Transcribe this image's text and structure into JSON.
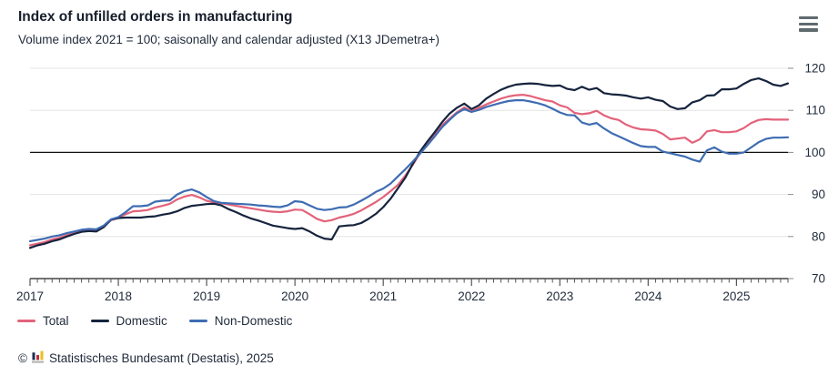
{
  "header": {
    "title": "Index of unfilled orders in manufacturing",
    "subtitle": "Volume index 2021 = 100; saisonally and calendar adjusted (X13 JDemetra+)"
  },
  "menu": {
    "icon": "hamburger-menu-icon"
  },
  "theme": {
    "title": "#161e2c",
    "text": "#1f2a3a",
    "axis": "#222222",
    "grid": "#e4e4e4",
    "tick": "#555555",
    "menu": "#5f6a6e",
    "logo_navy": "#1d2d50",
    "logo_red": "#c32b3a",
    "logo_gold": "#ecbe24",
    "logo_base": "#b0b0b0"
  },
  "chart_data": {
    "type": "line",
    "title": "Index of unfilled orders in manufacturing",
    "subtitle": "Volume index 2021 = 100; saisonally and calendar adjusted (X13 JDemetra+)",
    "x_frequency": "monthly",
    "x_start": "2017-01",
    "x_end": "2025-08",
    "x_tick_labels": [
      "2017",
      "2018",
      "2019",
      "2020",
      "2021",
      "2022",
      "2023",
      "2024",
      "2025"
    ],
    "y_ticks": [
      70,
      80,
      90,
      100,
      110,
      120
    ],
    "ylim": [
      70,
      120
    ],
    "reference_line": 100,
    "grid": "horizontal-light",
    "legend_position": "bottom-left",
    "series": [
      {
        "name": "Total",
        "color": "#e3627a",
        "values": [
          77.9,
          78.3,
          78.7,
          79.3,
          79.7,
          80.3,
          80.9,
          81.3,
          81.5,
          81.4,
          82.4,
          83.9,
          84.4,
          85.3,
          86.0,
          86.1,
          86.3,
          86.9,
          87.3,
          87.8,
          88.8,
          89.5,
          89.9,
          89.3,
          88.5,
          88.1,
          87.9,
          87.6,
          87.3,
          87.0,
          86.7,
          86.4,
          86.1,
          85.9,
          85.8,
          86.0,
          86.4,
          86.3,
          85.3,
          84.2,
          83.6,
          83.9,
          84.5,
          84.9,
          85.4,
          86.2,
          87.2,
          88.2,
          89.4,
          90.8,
          92.3,
          94.5,
          97.0,
          99.8,
          102.0,
          104.2,
          106.5,
          108.0,
          109.5,
          110.7,
          109.8,
          110.6,
          111.4,
          112.1,
          112.8,
          113.3,
          113.6,
          113.7,
          113.4,
          112.9,
          112.4,
          112.1,
          111.2,
          110.7,
          109.4,
          109.1,
          109.3,
          109.9,
          108.8,
          108.1,
          107.7,
          106.6,
          105.9,
          105.5,
          105.4,
          105.2,
          104.4,
          103.1,
          103.3,
          103.5,
          102.3,
          103.1,
          105.0,
          105.3,
          104.8,
          104.8,
          105.0,
          105.8,
          107.0,
          107.7,
          107.9,
          107.8,
          107.8,
          107.8
        ]
      },
      {
        "name": "Domestic",
        "color": "#16243e",
        "values": [
          77.3,
          77.9,
          78.3,
          78.9,
          79.3,
          80.0,
          80.6,
          81.1,
          81.3,
          81.2,
          82.2,
          84.0,
          84.4,
          84.5,
          84.5,
          84.5,
          84.7,
          84.8,
          85.2,
          85.5,
          86.0,
          86.8,
          87.3,
          87.5,
          87.7,
          87.8,
          87.4,
          86.5,
          85.8,
          85.0,
          84.3,
          83.8,
          83.2,
          82.6,
          82.3,
          82.0,
          81.8,
          82.0,
          81.2,
          80.2,
          79.5,
          79.3,
          82.4,
          82.6,
          82.7,
          83.2,
          84.2,
          85.4,
          87.0,
          89.0,
          91.5,
          94.0,
          97.2,
          100.2,
          102.6,
          104.8,
          107.2,
          109.2,
          110.6,
          111.6,
          110.3,
          111.2,
          112.8,
          113.9,
          114.9,
          115.6,
          116.1,
          116.3,
          116.4,
          116.3,
          116.0,
          115.8,
          115.9,
          115.1,
          114.8,
          115.6,
          114.9,
          115.3,
          114.1,
          113.8,
          113.7,
          113.5,
          113.1,
          112.8,
          113.1,
          112.5,
          112.2,
          110.9,
          110.3,
          110.5,
          111.9,
          112.4,
          113.5,
          113.6,
          115.0,
          115.0,
          115.2,
          116.3,
          117.2,
          117.6,
          117.0,
          116.1,
          115.8,
          116.4
        ]
      },
      {
        "name": "Non-Domestic",
        "color": "#3e6cb2",
        "values": [
          78.9,
          79.2,
          79.5,
          80.0,
          80.3,
          80.8,
          81.2,
          81.6,
          81.8,
          81.7,
          82.6,
          84.1,
          84.6,
          85.8,
          87.2,
          87.2,
          87.4,
          88.3,
          88.5,
          88.6,
          90.0,
          90.8,
          91.2,
          90.5,
          89.4,
          88.4,
          88.0,
          87.9,
          87.8,
          87.7,
          87.6,
          87.4,
          87.3,
          87.1,
          87.0,
          87.4,
          88.4,
          88.2,
          87.4,
          86.6,
          86.3,
          86.5,
          86.9,
          87.0,
          87.6,
          88.5,
          89.5,
          90.6,
          91.4,
          92.6,
          94.3,
          96.0,
          97.8,
          99.7,
          101.7,
          103.8,
          106.0,
          107.7,
          109.3,
          110.3,
          109.6,
          110.1,
          110.8,
          111.3,
          111.8,
          112.2,
          112.4,
          112.4,
          112.1,
          111.7,
          111.2,
          110.4,
          109.5,
          108.9,
          108.8,
          107.1,
          106.6,
          107.0,
          105.7,
          104.6,
          103.8,
          103.0,
          102.2,
          101.5,
          101.3,
          101.3,
          100.2,
          99.8,
          99.4,
          99.0,
          98.3,
          97.8,
          100.5,
          101.2,
          100.2,
          99.7,
          99.7,
          100.0,
          101.2,
          102.4,
          103.2,
          103.5,
          103.5,
          103.6
        ]
      }
    ]
  },
  "footer": {
    "copyright_sign": "©",
    "logo_icon": "destatis-bar-chart-icon",
    "text": "Statistisches Bundesamt (Destatis), 2025"
  }
}
